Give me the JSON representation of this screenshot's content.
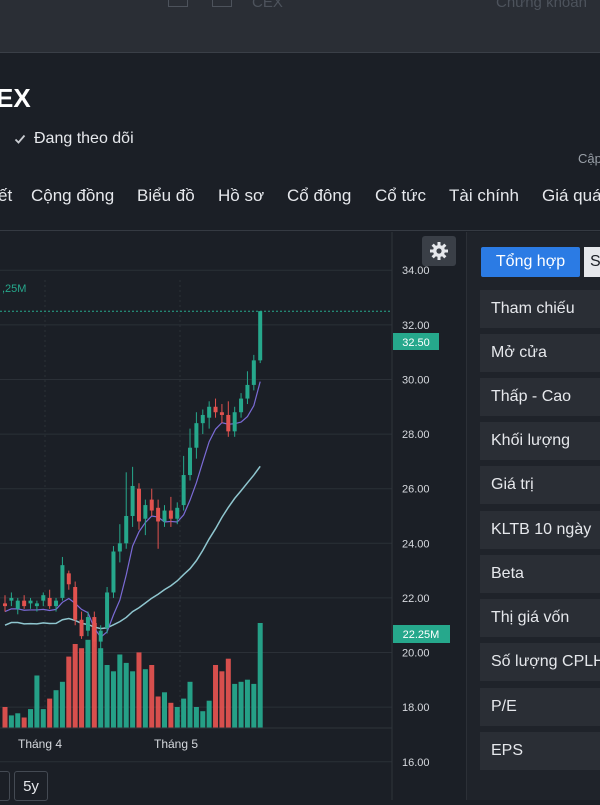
{
  "header": {
    "ghost_text": "CEX",
    "ghost_right": "Chứng khoán",
    "symbol_title": "EX",
    "follow_label": "Đang theo dõi",
    "update_label": "Cập"
  },
  "tabs": [
    "ết",
    "Cộng đồng",
    "Biểu đồ",
    "Hồ sơ",
    "Cổ đông",
    "Cổ tức",
    "Tài chính",
    "Giá quá"
  ],
  "chart": {
    "volume_label": ",25M",
    "current_price_label": "32.50",
    "current_volume_label": "22.25M",
    "price_ticks": [
      "34.00",
      "32.00",
      "30.00",
      "28.00",
      "26.00",
      "24.00",
      "22.00",
      "20.00",
      "18.00",
      "16.00"
    ],
    "month_labels": [
      "Tháng 4",
      "Tháng 5"
    ],
    "period_buttons": [
      "5y"
    ]
  },
  "chart_data": {
    "type": "candlestick",
    "price_ylim": [
      14.6,
      35.4
    ],
    "current_price": 32.5,
    "current_volume": "22.25M",
    "candles": [
      {
        "o": 21.7,
        "h": 22.1,
        "l": 21.5,
        "c": 21.8,
        "up": false
      },
      {
        "o": 21.9,
        "h": 22.2,
        "l": 21.7,
        "c": 22.0,
        "up": true
      },
      {
        "o": 21.6,
        "h": 22.0,
        "l": 21.4,
        "c": 21.9,
        "up": true
      },
      {
        "o": 21.9,
        "h": 22.1,
        "l": 21.6,
        "c": 21.7,
        "up": false
      },
      {
        "o": 21.8,
        "h": 22.0,
        "l": 21.6,
        "c": 21.9,
        "up": true
      },
      {
        "o": 21.7,
        "h": 21.9,
        "l": 21.5,
        "c": 21.8,
        "up": true
      },
      {
        "o": 21.9,
        "h": 22.2,
        "l": 21.7,
        "c": 22.1,
        "up": true
      },
      {
        "o": 22.0,
        "h": 22.3,
        "l": 21.6,
        "c": 21.7,
        "up": false
      },
      {
        "o": 21.7,
        "h": 22.0,
        "l": 21.5,
        "c": 21.9,
        "up": true
      },
      {
        "o": 22.0,
        "h": 23.5,
        "l": 21.9,
        "c": 23.2,
        "up": true
      },
      {
        "o": 22.9,
        "h": 23.0,
        "l": 22.3,
        "c": 22.5,
        "up": false
      },
      {
        "o": 22.4,
        "h": 22.6,
        "l": 21.0,
        "c": 21.2,
        "up": false
      },
      {
        "o": 21.2,
        "h": 21.5,
        "l": 20.5,
        "c": 20.6,
        "up": false
      },
      {
        "o": 20.8,
        "h": 21.5,
        "l": 20.6,
        "c": 21.3,
        "up": true
      },
      {
        "o": 21.3,
        "h": 21.5,
        "l": 20.2,
        "c": 20.4,
        "up": false
      },
      {
        "o": 20.4,
        "h": 21.0,
        "l": 19.7,
        "c": 20.8,
        "up": true
      },
      {
        "o": 20.9,
        "h": 22.4,
        "l": 20.7,
        "c": 22.2,
        "up": true
      },
      {
        "o": 22.2,
        "h": 23.9,
        "l": 22.0,
        "c": 23.7,
        "up": true
      },
      {
        "o": 23.7,
        "h": 24.7,
        "l": 23.3,
        "c": 24.0,
        "up": true
      },
      {
        "o": 24.0,
        "h": 26.6,
        "l": 23.8,
        "c": 25.0,
        "up": true
      },
      {
        "o": 25.0,
        "h": 26.8,
        "l": 24.6,
        "c": 26.1,
        "up": true
      },
      {
        "o": 26.0,
        "h": 26.2,
        "l": 24.5,
        "c": 24.8,
        "up": false
      },
      {
        "o": 24.9,
        "h": 25.6,
        "l": 24.3,
        "c": 25.4,
        "up": true
      },
      {
        "o": 25.6,
        "h": 26.0,
        "l": 25.0,
        "c": 25.2,
        "up": false
      },
      {
        "o": 25.3,
        "h": 25.6,
        "l": 23.8,
        "c": 24.8,
        "up": false
      },
      {
        "o": 24.8,
        "h": 25.4,
        "l": 24.6,
        "c": 25.2,
        "up": true
      },
      {
        "o": 25.2,
        "h": 25.7,
        "l": 24.6,
        "c": 24.9,
        "up": false
      },
      {
        "o": 24.9,
        "h": 25.5,
        "l": 24.7,
        "c": 25.3,
        "up": true
      },
      {
        "o": 25.4,
        "h": 27.2,
        "l": 25.2,
        "c": 26.5,
        "up": true
      },
      {
        "o": 26.5,
        "h": 28.2,
        "l": 26.3,
        "c": 27.5,
        "up": true
      },
      {
        "o": 27.5,
        "h": 28.8,
        "l": 27.1,
        "c": 28.4,
        "up": true
      },
      {
        "o": 28.4,
        "h": 28.9,
        "l": 28.0,
        "c": 28.7,
        "up": true
      },
      {
        "o": 28.6,
        "h": 29.2,
        "l": 28.2,
        "c": 29.0,
        "up": true
      },
      {
        "o": 29.0,
        "h": 29.3,
        "l": 28.6,
        "c": 28.8,
        "up": false
      },
      {
        "o": 28.8,
        "h": 29.1,
        "l": 28.4,
        "c": 28.7,
        "up": false
      },
      {
        "o": 28.7,
        "h": 29.2,
        "l": 27.9,
        "c": 28.1,
        "up": false
      },
      {
        "o": 28.1,
        "h": 29.0,
        "l": 27.9,
        "c": 28.8,
        "up": true
      },
      {
        "o": 28.8,
        "h": 29.5,
        "l": 28.6,
        "c": 29.3,
        "up": true
      },
      {
        "o": 29.3,
        "h": 30.3,
        "l": 29.1,
        "c": 29.8,
        "up": true
      },
      {
        "o": 29.8,
        "h": 30.9,
        "l": 29.6,
        "c": 30.7,
        "up": true
      },
      {
        "o": 30.7,
        "h": 32.5,
        "l": 30.6,
        "c": 32.5,
        "up": true
      }
    ],
    "volumes": [
      0.1,
      0.06,
      0.07,
      0.05,
      0.09,
      0.25,
      0.09,
      0.14,
      0.18,
      0.22,
      0.34,
      0.4,
      0.38,
      0.42,
      0.5,
      0.38,
      0.3,
      0.27,
      0.35,
      0.31,
      0.27,
      0.36,
      0.28,
      0.3,
      0.15,
      0.17,
      0.12,
      0.1,
      0.14,
      0.22,
      0.1,
      0.08,
      0.13,
      0.3,
      0.27,
      0.33,
      0.21,
      0.22,
      0.23,
      0.21,
      0.5
    ]
  },
  "side_panel": {
    "active_tab": "Tổng hợp",
    "second_tab": "S",
    "rows": [
      "Tham chiếu",
      "Mở cửa",
      "Thấp - Cao",
      "Khối lượng",
      "Giá trị",
      "KLTB 10 ngày",
      "Beta",
      "Thị giá vốn",
      "Số lượng CPLH",
      "P/E",
      "EPS"
    ]
  },
  "colors": {
    "up": "#26a88c",
    "down": "#e2524f",
    "ma_short": "#7b6bd6",
    "ma_long": "#8fc6cf",
    "accent": "#2b7be4"
  },
  "icons": [
    "check-icon",
    "gear-icon"
  ]
}
